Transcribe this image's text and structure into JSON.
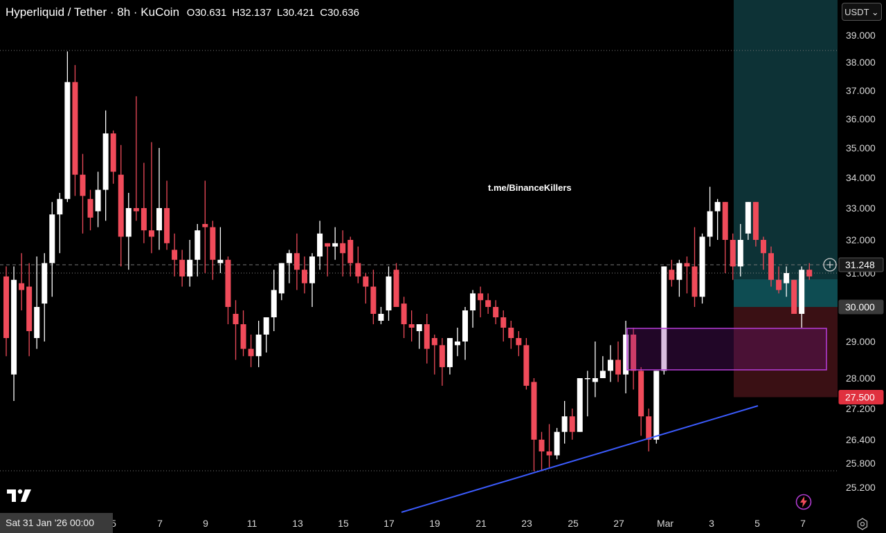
{
  "header": {
    "symbol": "Hyperliquid / Tether · 8h · KuCoin",
    "open": "O30.631",
    "high": "H32.137",
    "low": "L30.421",
    "close": "C30.636"
  },
  "currency_button": "USDT ⌄",
  "watermark": "t.me/BinanceKillers",
  "crosshair_date": "Sat 31 Jan '26   00:00",
  "colors": {
    "up": "#ffffff",
    "down": "#f04b5a",
    "trendline": "#3b5bfd",
    "zone": "#b13bd1",
    "target": "#0d3236",
    "stop": "#3a1014"
  },
  "icons": [
    "tradingview-logo-icon",
    "flash-icon",
    "settings-icon",
    "add-alert-icon"
  ],
  "chart_data": {
    "type": "candlestick",
    "y_axis_ticks": [
      "39.000",
      "38.000",
      "37.000",
      "36.000",
      "35.000",
      "34.000",
      "33.000",
      "32.000",
      "31.000",
      "30.000",
      "29.000",
      "28.000",
      "27.200",
      "26.400",
      "25.800",
      "25.200"
    ],
    "x_axis_ticks": [
      "5",
      "7",
      "9",
      "11",
      "13",
      "15",
      "17",
      "19",
      "21",
      "23",
      "25",
      "27",
      "Mar",
      "3",
      "5",
      "7"
    ],
    "price_labels": [
      {
        "text": "31.248",
        "kind": "current"
      },
      {
        "text": "30.000",
        "kind": "entry"
      },
      {
        "text": "27.500",
        "kind": "stop"
      }
    ],
    "levels": [
      38.4,
      31.05,
      25.55
    ],
    "trendline": {
      "from": [
        "Feb 17",
        24.3
      ],
      "to": [
        "Mar 5",
        27.2
      ]
    },
    "demand_zone": {
      "top": 29.4,
      "bottom": 28.25
    },
    "position": {
      "entry": 30.0,
      "stop": 27.5,
      "target_top": 39.5
    },
    "candles": [
      [
        30.9,
        31.2,
        28.6,
        29.1
      ],
      [
        28.1,
        31.2,
        27.4,
        30.8
      ],
      [
        30.7,
        31.6,
        29.9,
        30.5
      ],
      [
        30.6,
        31.3,
        28.6,
        29.3
      ],
      [
        29.1,
        31.5,
        28.8,
        30.0
      ],
      [
        30.1,
        31.6,
        29.0,
        31.3
      ],
      [
        31.3,
        33.2,
        30.3,
        32.8
      ],
      [
        32.8,
        33.5,
        31.6,
        33.3
      ],
      [
        33.3,
        38.4,
        33.2,
        37.3
      ],
      [
        37.3,
        37.9,
        33.4,
        34.1
      ],
      [
        34.1,
        34.8,
        32.2,
        33.4
      ],
      [
        33.3,
        33.6,
        32.3,
        32.7
      ],
      [
        32.9,
        34.2,
        32.4,
        33.6
      ],
      [
        33.6,
        36.3,
        32.6,
        35.5
      ],
      [
        35.5,
        35.6,
        33.8,
        34.2
      ],
      [
        34.1,
        35.1,
        31.2,
        32.1
      ],
      [
        32.1,
        33.5,
        31.1,
        33.0
      ],
      [
        33.0,
        36.8,
        32.6,
        32.9
      ],
      [
        33.0,
        34.5,
        31.9,
        32.3
      ],
      [
        32.3,
        35.2,
        31.6,
        32.1
      ],
      [
        32.3,
        35.0,
        31.7,
        33.0
      ],
      [
        33.0,
        33.9,
        31.7,
        31.9
      ],
      [
        31.7,
        32.2,
        30.9,
        31.4
      ],
      [
        31.4,
        31.7,
        30.6,
        30.9
      ],
      [
        30.9,
        32.0,
        30.6,
        31.4
      ],
      [
        31.4,
        32.5,
        30.9,
        32.3
      ],
      [
        32.5,
        33.9,
        31.0,
        32.4
      ],
      [
        32.4,
        32.6,
        30.8,
        31.4
      ],
      [
        31.3,
        32.4,
        31.0,
        31.4
      ],
      [
        31.4,
        31.5,
        29.5,
        30.0
      ],
      [
        29.8,
        30.2,
        28.5,
        29.5
      ],
      [
        29.5,
        29.9,
        28.6,
        28.8
      ],
      [
        28.8,
        29.2,
        28.3,
        28.6
      ],
      [
        28.6,
        29.6,
        28.3,
        29.2
      ],
      [
        29.2,
        29.6,
        28.7,
        29.7
      ],
      [
        29.7,
        31.1,
        29.3,
        30.5
      ],
      [
        30.4,
        31.3,
        30.2,
        31.3
      ],
      [
        31.3,
        31.7,
        30.7,
        31.6
      ],
      [
        31.6,
        32.2,
        30.5,
        31.1
      ],
      [
        31.1,
        31.5,
        30.4,
        30.7
      ],
      [
        30.7,
        31.6,
        30.0,
        31.5
      ],
      [
        31.5,
        32.6,
        31.1,
        32.2
      ],
      [
        31.9,
        31.9,
        30.9,
        31.8
      ],
      [
        31.8,
        32.4,
        31.4,
        31.9
      ],
      [
        31.9,
        32.3,
        30.9,
        31.6
      ],
      [
        32.0,
        32.1,
        30.9,
        31.3
      ],
      [
        31.3,
        31.8,
        30.7,
        30.9
      ],
      [
        30.9,
        31.0,
        30.1,
        30.6
      ],
      [
        30.6,
        31.1,
        29.5,
        29.8
      ],
      [
        29.6,
        30.0,
        29.5,
        29.8
      ],
      [
        29.9,
        31.2,
        29.6,
        30.9
      ],
      [
        31.1,
        31.3,
        30.0,
        30.0
      ],
      [
        30.1,
        30.3,
        29.1,
        29.5
      ],
      [
        29.5,
        29.9,
        29.0,
        29.4
      ],
      [
        29.3,
        29.5,
        28.8,
        29.5
      ],
      [
        29.5,
        29.8,
        28.4,
        28.8
      ],
      [
        29.1,
        29.2,
        28.1,
        28.9
      ],
      [
        28.9,
        29.1,
        27.8,
        28.3
      ],
      [
        28.3,
        29.1,
        28.1,
        29.1
      ],
      [
        28.9,
        29.4,
        28.6,
        29.0
      ],
      [
        29.0,
        30.0,
        28.5,
        29.9
      ],
      [
        29.9,
        30.5,
        29.4,
        30.4
      ],
      [
        30.4,
        30.6,
        29.7,
        30.2
      ],
      [
        30.2,
        30.4,
        29.8,
        30.0
      ],
      [
        30.0,
        30.2,
        29.5,
        29.7
      ],
      [
        29.7,
        29.9,
        29.0,
        29.4
      ],
      [
        29.4,
        29.6,
        28.8,
        29.1
      ],
      [
        29.1,
        29.3,
        28.6,
        28.9
      ],
      [
        28.9,
        29.1,
        27.7,
        27.8
      ],
      [
        27.9,
        28.0,
        25.6,
        26.4
      ],
      [
        26.4,
        26.6,
        25.6,
        26.1
      ],
      [
        26.1,
        26.8,
        25.7,
        26.0
      ],
      [
        26.0,
        26.7,
        25.9,
        26.6
      ],
      [
        26.6,
        27.4,
        26.3,
        27.0
      ],
      [
        27.0,
        27.2,
        26.4,
        26.6
      ],
      [
        26.6,
        28.0,
        26.6,
        28.0
      ],
      [
        28.0,
        28.2,
        27.0,
        28.0
      ],
      [
        27.9,
        29.0,
        27.5,
        28.0
      ],
      [
        28.0,
        28.6,
        28.0,
        28.2
      ],
      [
        28.2,
        28.9,
        27.9,
        28.5
      ],
      [
        28.5,
        29.0,
        27.9,
        28.1
      ],
      [
        28.1,
        29.6,
        27.6,
        29.2
      ],
      [
        29.2,
        29.4,
        27.7,
        28.2
      ],
      [
        28.2,
        28.3,
        26.5,
        27.0
      ],
      [
        27.0,
        27.2,
        26.1,
        26.4
      ],
      [
        26.4,
        28.2,
        26.3,
        28.2
      ],
      [
        28.2,
        31.2,
        28.1,
        31.2
      ],
      [
        31.1,
        31.4,
        30.6,
        30.8
      ],
      [
        30.8,
        31.4,
        30.3,
        31.3
      ],
      [
        31.3,
        31.5,
        30.4,
        31.2
      ],
      [
        31.2,
        32.4,
        30.0,
        30.3
      ],
      [
        30.3,
        32.2,
        30.1,
        32.1
      ],
      [
        32.1,
        33.7,
        31.8,
        32.9
      ],
      [
        32.9,
        33.3,
        32.0,
        33.2
      ],
      [
        33.2,
        33.2,
        31.0,
        32.0
      ],
      [
        32.0,
        32.2,
        30.8,
        31.2
      ],
      [
        31.2,
        32.5,
        30.9,
        32.0
      ],
      [
        32.2,
        33.2,
        32.0,
        33.2
      ],
      [
        33.2,
        33.2,
        31.8,
        32.0
      ],
      [
        32.0,
        32.1,
        31.1,
        31.6
      ],
      [
        31.6,
        31.8,
        30.6,
        30.8
      ],
      [
        30.8,
        31.2,
        30.4,
        30.5
      ],
      [
        30.7,
        31.2,
        30.3,
        31.0
      ],
      [
        30.8,
        30.8,
        29.8,
        29.8
      ],
      [
        29.8,
        31.2,
        29.4,
        31.1
      ],
      [
        31.1,
        31.3,
        30.8,
        30.9
      ]
    ]
  }
}
